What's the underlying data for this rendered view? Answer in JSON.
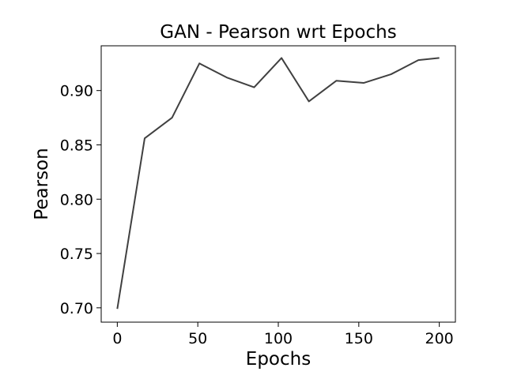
{
  "chart_data": {
    "type": "line",
    "title": "GAN - Pearson wrt Epochs",
    "xlabel": "Epochs",
    "ylabel": "Pearson",
    "xlim": [
      -10,
      210
    ],
    "ylim": [
      0.6868,
      0.9412
    ],
    "grid": false,
    "xticks": [
      0,
      50,
      100,
      150,
      200
    ],
    "xtick_labels": [
      "0",
      "50",
      "100",
      "150",
      "200"
    ],
    "yticks": [
      0.7,
      0.75,
      0.8,
      0.85,
      0.9
    ],
    "ytick_labels": [
      "0.70",
      "0.75",
      "0.80",
      "0.85",
      "0.90"
    ],
    "series": [
      {
        "color": "#404040",
        "x": [
          0,
          17,
          34,
          51,
          68,
          85,
          102,
          119,
          136,
          153,
          170,
          187,
          200
        ],
        "y": [
          0.699,
          0.856,
          0.875,
          0.925,
          0.912,
          0.903,
          0.93,
          0.89,
          0.909,
          0.907,
          0.915,
          0.928,
          0.93
        ]
      }
    ]
  }
}
